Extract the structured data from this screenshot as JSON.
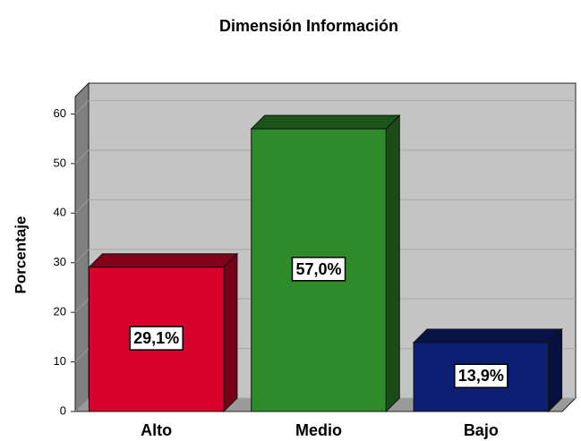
{
  "chart_data": {
    "type": "bar",
    "title": "Dimensión Información",
    "y_label": "Porcentaje",
    "categories": [
      "Alto",
      "Medio",
      "Bajo"
    ],
    "values": [
      29.1,
      57.0,
      13.9
    ],
    "value_labels": [
      "29,1%",
      "57,0%",
      "13,9%"
    ],
    "colors": [
      "#d8002c",
      "#2e8b2a",
      "#0c1f72"
    ],
    "ylim": [
      0,
      63.5
    ],
    "yticks": [
      0,
      10,
      20,
      30,
      40,
      50,
      60
    ],
    "grid": true
  }
}
